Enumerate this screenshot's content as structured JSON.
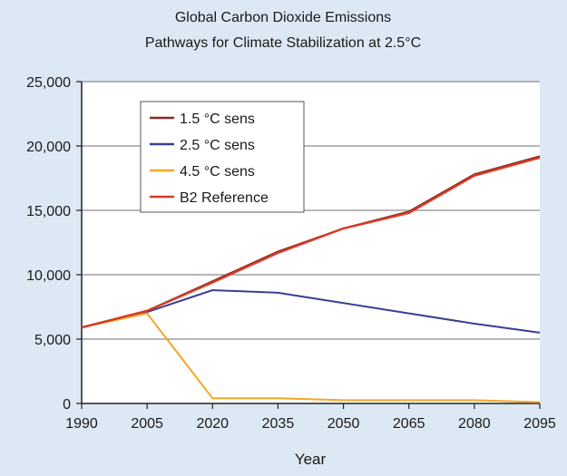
{
  "chart_data": {
    "type": "line",
    "title": [
      "Global Carbon Dioxide Emissions",
      "Pathways for Climate Stabilization at 2.5°C"
    ],
    "xlabel": "Year",
    "ylabel": "",
    "x": [
      1990,
      2005,
      2020,
      2035,
      2050,
      2065,
      2080,
      2095
    ],
    "x_tick_labels": [
      "1990",
      "2005",
      "2020",
      "2035",
      "2050",
      "2065",
      "2080",
      "2095"
    ],
    "y_ticks": [
      0,
      5000,
      10000,
      15000,
      20000,
      25000
    ],
    "y_tick_labels": [
      "0",
      "5,000",
      "10,000",
      "15,000",
      "20,000",
      "25,000"
    ],
    "xlim": [
      1990,
      2095
    ],
    "ylim": [
      0,
      25000
    ],
    "grid": "horizontal",
    "legend_position": "top-left",
    "series": [
      {
        "name": "1.5  °C sens",
        "color": "#8b2a1e",
        "values": [
          5900,
          7200,
          9500,
          11800,
          13600,
          14900,
          17800,
          19200
        ]
      },
      {
        "name": "2.5  °C sens",
        "color": "#3a3f8f",
        "values": [
          5900,
          7100,
          8800,
          8600,
          7800,
          7000,
          6200,
          5500
        ]
      },
      {
        "name": "4.5  °C sens",
        "color": "#f5a623",
        "values": [
          5900,
          7000,
          400,
          400,
          250,
          250,
          250,
          100
        ]
      },
      {
        "name": "B2 Reference",
        "color": "#d63a26",
        "values": [
          5900,
          7200,
          9400,
          11700,
          13600,
          14800,
          17700,
          19100
        ]
      }
    ]
  }
}
